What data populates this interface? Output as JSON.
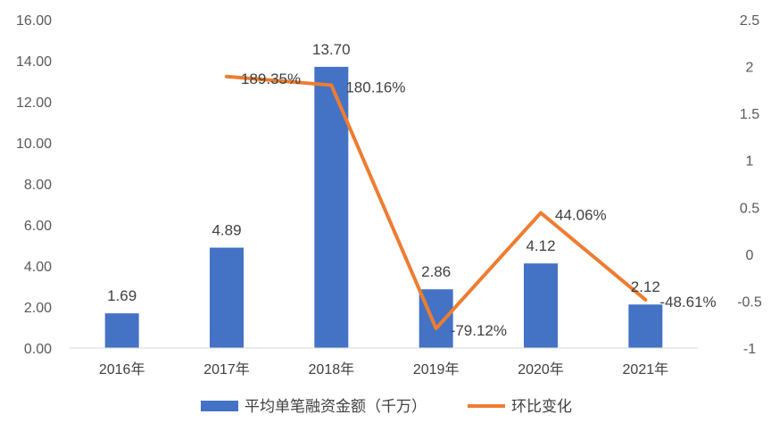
{
  "chart_data": {
    "type": "bar",
    "categories": [
      "2016年",
      "2017年",
      "2018年",
      "2019年",
      "2020年",
      "2021年"
    ],
    "series": [
      {
        "name": "平均单笔融资金额（千万）",
        "type": "bar",
        "axis": "left",
        "values": [
          1.69,
          4.89,
          13.7,
          2.86,
          4.12,
          2.12
        ],
        "labels": [
          "1.69",
          "4.89",
          "13.70",
          "2.86",
          "4.12",
          "2.12"
        ],
        "color": "#4472C4"
      },
      {
        "name": "环比变化",
        "type": "line",
        "axis": "right",
        "values": [
          null,
          1.8935,
          1.8016,
          -0.7912,
          0.4406,
          -0.4861
        ],
        "labels": [
          "",
          "189.35%",
          "180.16%",
          "-79.12%",
          "44.06%",
          "-48.61%"
        ],
        "color": "#ED7D31"
      }
    ],
    "y_left": {
      "min": 0,
      "max": 16,
      "ticks": [
        "0.00",
        "2.00",
        "4.00",
        "6.00",
        "8.00",
        "10.00",
        "12.00",
        "14.00",
        "16.00"
      ]
    },
    "y_right": {
      "min": -1,
      "max": 2.5,
      "ticks": [
        "-1",
        "-0.5",
        "0",
        "0.5",
        "1",
        "1.5",
        "2",
        "2.5"
      ]
    },
    "grid": false,
    "legend": "bottom"
  }
}
